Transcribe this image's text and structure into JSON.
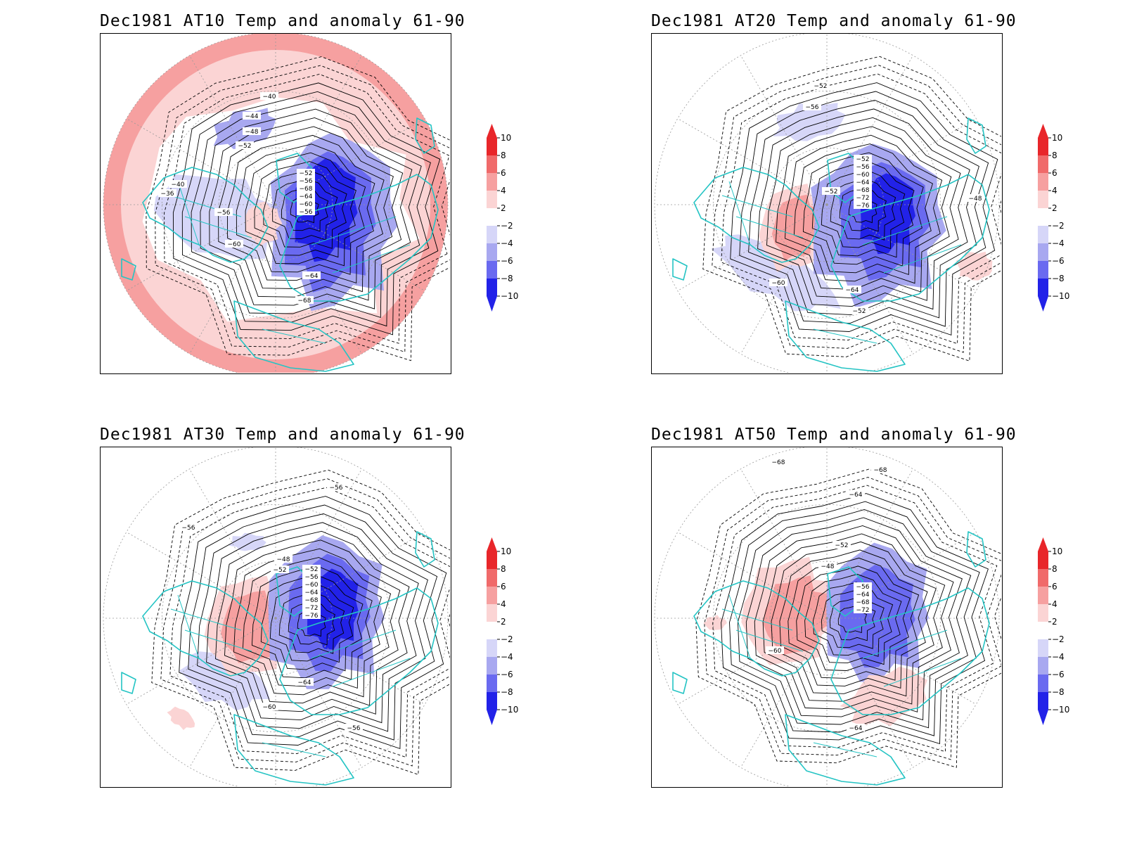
{
  "colors": {
    "red_dark": "#e8262a",
    "red_mid": "#f06a6a",
    "red_light": "#f6a0a0",
    "red_pale": "#fbd4d4",
    "blue_pale": "#d6d6f8",
    "blue_light": "#a8a8f0",
    "blue_mid": "#6a6af0",
    "blue_dark": "#2222e8",
    "coast": "#25c4c4",
    "contour": "#000000",
    "grid": "#9a9a9a"
  },
  "colorbar": {
    "levels": [
      "10",
      "8",
      "6",
      "4",
      "2",
      "−2",
      "−4",
      "−6",
      "−8",
      "−10"
    ],
    "units": ""
  },
  "panels": [
    {
      "title": "Dec1981 AT10 Temp and anomaly 61-90",
      "level": "AT10",
      "contour_labels": [
        "−40",
        "−44",
        "−48",
        "−52",
        "−56",
        "−60",
        "−64",
        "−68",
        "−36",
        "−40"
      ],
      "featured_labels": [
        "−52",
        "−56",
        "−68",
        "−64",
        "−60",
        "−56"
      ]
    },
    {
      "title": "Dec1981 AT20 Temp and anomaly 61-90",
      "level": "AT20",
      "contour_labels": [
        "−52",
        "−56",
        "−48",
        "−52",
        "−60",
        "−64",
        "−52"
      ],
      "featured_labels": [
        "−52",
        "−56",
        "−60",
        "−64",
        "−68",
        "−72",
        "−76"
      ]
    },
    {
      "title": "Dec1981 AT30 Temp and anomaly 61-90",
      "level": "AT30",
      "contour_labels": [
        "−56",
        "−56",
        "−48",
        "−52",
        "−60",
        "−64",
        "−56"
      ],
      "featured_labels": [
        "−52",
        "−56",
        "−60",
        "−64",
        "−68",
        "−72",
        "−76"
      ]
    },
    {
      "title": "Dec1981 AT50 Temp and anomaly 61-90",
      "level": "AT50",
      "contour_labels": [
        "−68",
        "−68",
        "−64",
        "−52",
        "−48",
        "−60",
        "−64"
      ],
      "featured_labels": [
        "−56",
        "−64",
        "−68",
        "−72"
      ]
    }
  ]
}
